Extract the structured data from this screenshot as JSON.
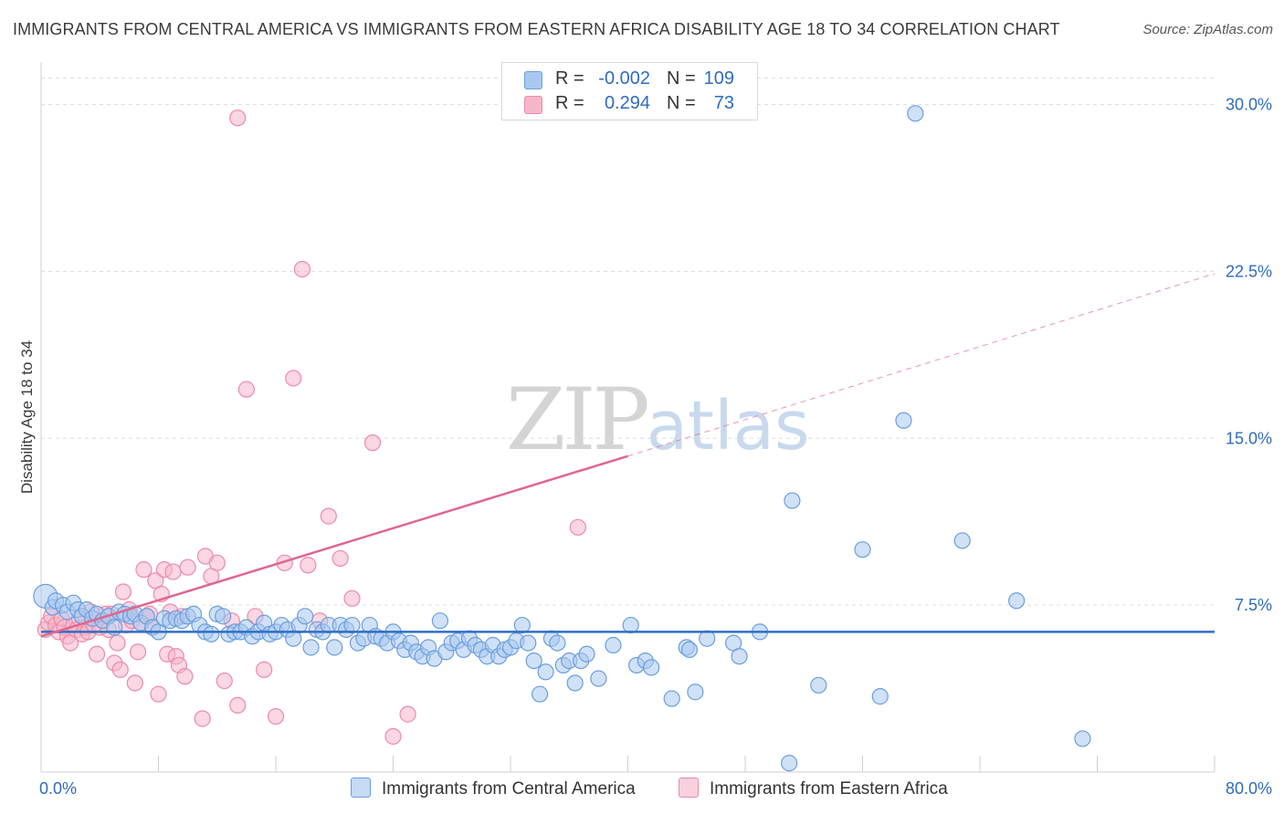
{
  "header": {
    "title": "IMMIGRANTS FROM CENTRAL AMERICA VS IMMIGRANTS FROM EASTERN AFRICA DISABILITY AGE 18 TO 34 CORRELATION CHART",
    "source": "Source: ZipAtlas.com"
  },
  "watermark": {
    "zip": "ZIP",
    "atlas": "atlas"
  },
  "legend": {
    "rows": [
      {
        "r_label": "R =",
        "r_value": "-0.002",
        "n_label": "N =",
        "n_value": "109"
      },
      {
        "r_label": "R =",
        "r_value": "0.294",
        "n_label": "N =",
        "n_value": "73"
      }
    ]
  },
  "colors": {
    "blue_fill": "#a9c8ef",
    "blue_stroke": "#6a9ee0",
    "blue_line": "#2f6fc4",
    "pink_fill": "#f6b6ca",
    "pink_stroke": "#ec8aa9",
    "pink_line": "#e0668f",
    "tick_label": "#2e6bc0",
    "grid": "#dcdcdc"
  },
  "chart_data": {
    "type": "scatter",
    "title": "IMMIGRANTS FROM CENTRAL AMERICA VS IMMIGRANTS FROM EASTERN AFRICA DISABILITY AGE 18 TO 34 CORRELATION CHART",
    "xlabel": "",
    "ylabel": "Disability Age 18 to 34",
    "xlim": [
      0,
      80
    ],
    "ylim": [
      0,
      31.5
    ],
    "x_tick_labels": [
      "0.0%",
      "80.0%"
    ],
    "y_ticks": [
      7.5,
      15.0,
      22.5,
      30.0
    ],
    "y_tick_labels": [
      "7.5%",
      "15.0%",
      "22.5%",
      "30.0%"
    ],
    "grid": true,
    "legend_position": "bottom",
    "series": [
      {
        "name": "Immigrants from Central America",
        "color": "#a9c8ef",
        "r": -0.002,
        "n": 109,
        "trend": {
          "x": [
            0,
            80
          ],
          "y": [
            6.3,
            6.3
          ],
          "style": "solid"
        },
        "points": [
          [
            0.3,
            7.9
          ],
          [
            0.8,
            7.4
          ],
          [
            1.0,
            7.7
          ],
          [
            1.5,
            7.5
          ],
          [
            1.8,
            7.2
          ],
          [
            2.2,
            7.6
          ],
          [
            2.5,
            7.3
          ],
          [
            2.8,
            7.0
          ],
          [
            3.1,
            7.3
          ],
          [
            3.5,
            6.9
          ],
          [
            3.8,
            7.1
          ],
          [
            4.2,
            6.8
          ],
          [
            4.6,
            7.0
          ],
          [
            5.0,
            6.5
          ],
          [
            5.3,
            7.2
          ],
          [
            5.7,
            7.1
          ],
          [
            6.1,
            7.0
          ],
          [
            6.4,
            7.1
          ],
          [
            6.8,
            6.7
          ],
          [
            7.2,
            7.0
          ],
          [
            7.6,
            6.5
          ],
          [
            8.0,
            6.3
          ],
          [
            8.4,
            6.9
          ],
          [
            8.8,
            6.8
          ],
          [
            9.2,
            6.9
          ],
          [
            9.6,
            6.8
          ],
          [
            10.0,
            7.0
          ],
          [
            10.4,
            7.1
          ],
          [
            10.8,
            6.6
          ],
          [
            11.2,
            6.3
          ],
          [
            11.6,
            6.2
          ],
          [
            12.0,
            7.1
          ],
          [
            12.4,
            7.0
          ],
          [
            12.8,
            6.2
          ],
          [
            13.2,
            6.3
          ],
          [
            13.6,
            6.3
          ],
          [
            14.0,
            6.5
          ],
          [
            14.4,
            6.1
          ],
          [
            14.8,
            6.3
          ],
          [
            15.2,
            6.7
          ],
          [
            15.6,
            6.2
          ],
          [
            16.0,
            6.3
          ],
          [
            16.4,
            6.6
          ],
          [
            16.8,
            6.4
          ],
          [
            17.2,
            6.0
          ],
          [
            17.6,
            6.6
          ],
          [
            18.0,
            7.0
          ],
          [
            18.4,
            5.6
          ],
          [
            18.8,
            6.4
          ],
          [
            19.2,
            6.3
          ],
          [
            19.6,
            6.6
          ],
          [
            20.0,
            5.6
          ],
          [
            20.4,
            6.6
          ],
          [
            20.8,
            6.4
          ],
          [
            21.2,
            6.6
          ],
          [
            21.6,
            5.8
          ],
          [
            22.0,
            6.0
          ],
          [
            22.4,
            6.6
          ],
          [
            22.8,
            6.1
          ],
          [
            23.2,
            6.0
          ],
          [
            23.6,
            5.8
          ],
          [
            24.0,
            6.3
          ],
          [
            24.4,
            5.9
          ],
          [
            24.8,
            5.5
          ],
          [
            25.2,
            5.8
          ],
          [
            25.6,
            5.4
          ],
          [
            26.0,
            5.2
          ],
          [
            26.4,
            5.6
          ],
          [
            26.8,
            5.1
          ],
          [
            27.2,
            6.8
          ],
          [
            27.6,
            5.4
          ],
          [
            28.0,
            5.8
          ],
          [
            28.4,
            5.9
          ],
          [
            28.8,
            5.5
          ],
          [
            29.2,
            6.0
          ],
          [
            29.6,
            5.7
          ],
          [
            30.0,
            5.5
          ],
          [
            30.4,
            5.2
          ],
          [
            30.8,
            5.7
          ],
          [
            31.2,
            5.2
          ],
          [
            31.6,
            5.5
          ],
          [
            32.0,
            5.6
          ],
          [
            32.4,
            5.9
          ],
          [
            32.8,
            6.6
          ],
          [
            33.2,
            5.8
          ],
          [
            33.6,
            5.0
          ],
          [
            34.0,
            3.5
          ],
          [
            34.4,
            4.5
          ],
          [
            34.8,
            6.0
          ],
          [
            35.2,
            5.8
          ],
          [
            35.6,
            4.8
          ],
          [
            36.0,
            5.0
          ],
          [
            36.4,
            4.0
          ],
          [
            36.8,
            5.0
          ],
          [
            37.2,
            5.3
          ],
          [
            38.0,
            4.2
          ],
          [
            40.2,
            6.6
          ],
          [
            39.0,
            5.7
          ],
          [
            40.6,
            4.8
          ],
          [
            41.2,
            5.0
          ],
          [
            41.6,
            4.7
          ],
          [
            43.0,
            3.3
          ],
          [
            44.0,
            5.6
          ],
          [
            44.6,
            3.6
          ],
          [
            45.4,
            6.0
          ],
          [
            47.2,
            5.8
          ],
          [
            49.0,
            6.3
          ],
          [
            51.2,
            12.2
          ],
          [
            53.0,
            3.9
          ],
          [
            56.0,
            10.0
          ],
          [
            57.2,
            3.4
          ],
          [
            58.8,
            15.8
          ],
          [
            59.6,
            29.6
          ],
          [
            62.8,
            10.4
          ],
          [
            66.5,
            7.7
          ],
          [
            71.0,
            1.5
          ],
          [
            51.0,
            0.4
          ],
          [
            47.6,
            5.2
          ],
          [
            44.2,
            5.5
          ]
        ]
      },
      {
        "name": "Immigrants from Eastern Africa",
        "color": "#f6b6ca",
        "r": 0.294,
        "n": 73,
        "trend": {
          "x": [
            0,
            40,
            80
          ],
          "y": [
            6.1,
            14.2,
            22.4
          ],
          "style": "solid-then-dashed"
        },
        "points": [
          [
            0.3,
            6.4
          ],
          [
            0.5,
            6.7
          ],
          [
            0.7,
            7.0
          ],
          [
            1.0,
            6.6
          ],
          [
            1.2,
            6.3
          ],
          [
            1.4,
            6.9
          ],
          [
            1.6,
            6.5
          ],
          [
            1.8,
            6.1
          ],
          [
            2.0,
            5.8
          ],
          [
            2.2,
            6.6
          ],
          [
            2.4,
            6.4
          ],
          [
            2.6,
            6.9
          ],
          [
            2.8,
            6.2
          ],
          [
            3.0,
            6.5
          ],
          [
            3.2,
            6.3
          ],
          [
            3.4,
            7.2
          ],
          [
            3.6,
            6.6
          ],
          [
            3.8,
            5.3
          ],
          [
            4.0,
            6.5
          ],
          [
            4.2,
            6.8
          ],
          [
            4.4,
            7.1
          ],
          [
            4.6,
            6.4
          ],
          [
            4.8,
            7.1
          ],
          [
            5.0,
            4.9
          ],
          [
            5.2,
            5.8
          ],
          [
            5.4,
            4.6
          ],
          [
            5.6,
            8.1
          ],
          [
            5.8,
            6.6
          ],
          [
            6.0,
            7.3
          ],
          [
            6.2,
            6.8
          ],
          [
            6.4,
            4.0
          ],
          [
            6.6,
            5.4
          ],
          [
            6.8,
            6.7
          ],
          [
            7.0,
            9.1
          ],
          [
            7.2,
            7.0
          ],
          [
            7.4,
            7.1
          ],
          [
            7.6,
            6.5
          ],
          [
            7.8,
            8.6
          ],
          [
            8.0,
            3.5
          ],
          [
            8.2,
            8.0
          ],
          [
            8.4,
            9.1
          ],
          [
            8.6,
            5.3
          ],
          [
            8.8,
            7.2
          ],
          [
            9.0,
            9.0
          ],
          [
            9.2,
            5.2
          ],
          [
            9.4,
            4.8
          ],
          [
            9.6,
            7.0
          ],
          [
            9.8,
            4.3
          ],
          [
            10.0,
            9.2
          ],
          [
            11.0,
            2.4
          ],
          [
            11.2,
            9.7
          ],
          [
            11.6,
            8.8
          ],
          [
            12.0,
            9.4
          ],
          [
            12.5,
            4.1
          ],
          [
            13.0,
            6.8
          ],
          [
            13.4,
            3.0
          ],
          [
            14.0,
            17.2
          ],
          [
            14.6,
            7.0
          ],
          [
            15.2,
            4.6
          ],
          [
            16.0,
            2.5
          ],
          [
            16.6,
            9.4
          ],
          [
            17.2,
            17.7
          ],
          [
            17.8,
            22.6
          ],
          [
            18.2,
            9.3
          ],
          [
            19.0,
            6.8
          ],
          [
            19.6,
            11.5
          ],
          [
            20.4,
            9.6
          ],
          [
            21.2,
            7.8
          ],
          [
            22.6,
            14.8
          ],
          [
            24.0,
            1.6
          ],
          [
            13.4,
            29.4
          ],
          [
            36.6,
            11.0
          ],
          [
            25.0,
            2.6
          ]
        ]
      }
    ]
  }
}
